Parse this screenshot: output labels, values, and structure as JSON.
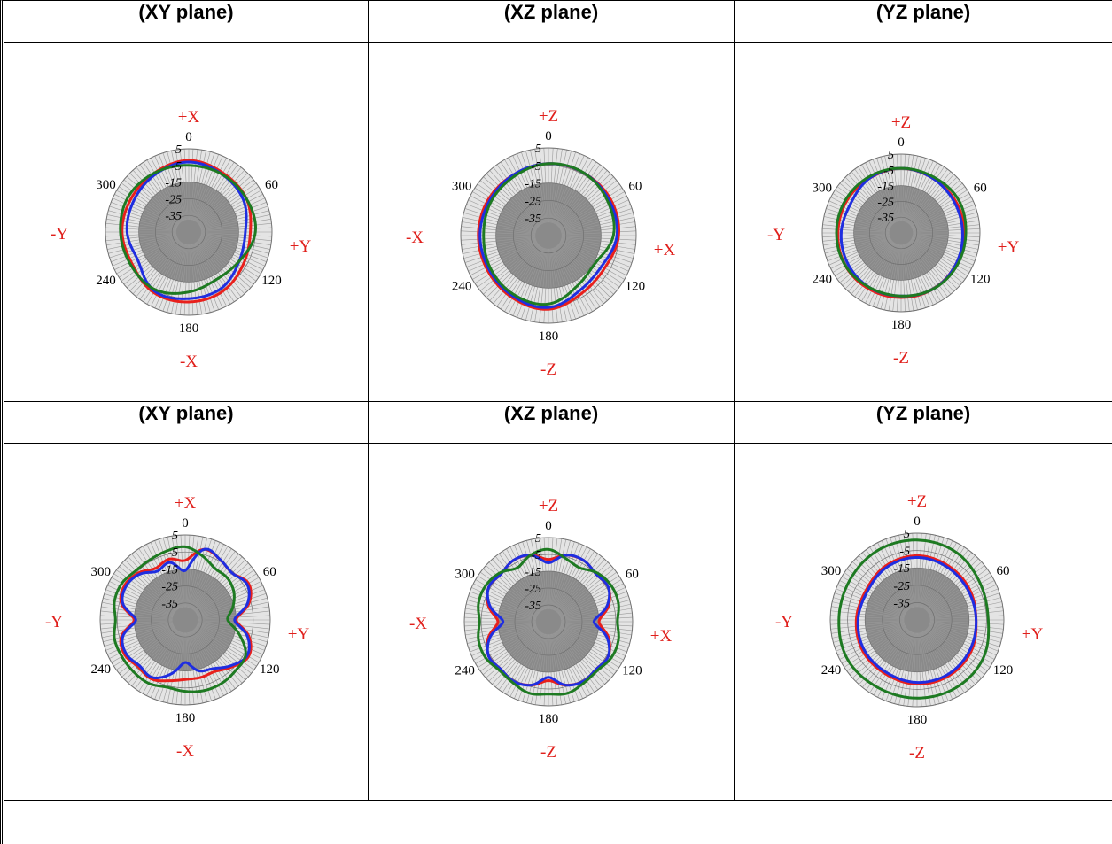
{
  "colors": {
    "red": "#e8201c",
    "blue": "#1f2ee0",
    "green": "#1e7a22",
    "axis_label": "#e0201c",
    "disk_fill": "#8a8a8a"
  },
  "chart_data": [
    {
      "type": "polar",
      "title": "(XY plane)",
      "angle_ticks": [
        "0",
        "60",
        "120",
        "180",
        "240",
        "300"
      ],
      "radial_ticks": [
        "5",
        "-5",
        "-15",
        "-25",
        "-35"
      ],
      "rlim": [
        -45,
        5
      ],
      "axis_labels": {
        "top": "+X",
        "right": "+Y",
        "bottom": "-X",
        "left": "-Y"
      },
      "theta": [
        0,
        30,
        60,
        90,
        120,
        150,
        180,
        210,
        240,
        270,
        300,
        330
      ],
      "series": [
        {
          "color": "red",
          "values": [
            -2,
            -4,
            -5,
            -8,
            -7,
            -4,
            -3,
            -3,
            -6,
            -5,
            -5,
            -4
          ]
        },
        {
          "color": "blue",
          "values": [
            -3,
            -5,
            -7,
            -11,
            -10,
            -6,
            -5,
            -4,
            -10,
            -8,
            -7,
            -5
          ]
        },
        {
          "color": "green",
          "values": [
            -5,
            -5,
            -5,
            -5,
            -10,
            -12,
            -9,
            -5,
            -5,
            -4,
            -3,
            -4
          ]
        }
      ]
    },
    {
      "type": "polar",
      "title": "(XZ plane)",
      "angle_ticks": [
        "0",
        "60",
        "120",
        "180",
        "240",
        "300"
      ],
      "radial_ticks": [
        "5",
        "-5",
        "-15",
        "-25",
        "-35"
      ],
      "rlim": [
        -45,
        5
      ],
      "axis_labels": {
        "top": "+Z",
        "right": "+X",
        "bottom": "-Z",
        "left": "-X"
      },
      "theta": [
        0,
        30,
        60,
        90,
        120,
        150,
        180,
        210,
        240,
        270,
        300,
        330
      ],
      "series": [
        {
          "color": "red",
          "values": [
            -4,
            -4,
            -4,
            -5,
            -8,
            -7,
            -3,
            -4,
            -5,
            -5,
            -5,
            -5
          ]
        },
        {
          "color": "blue",
          "values": [
            -4,
            -4,
            -5,
            -6,
            -10,
            -9,
            -4,
            -5,
            -6,
            -6,
            -6,
            -5
          ]
        },
        {
          "color": "green",
          "values": [
            -4,
            -4,
            -6,
            -8,
            -14,
            -12,
            -6,
            -6,
            -7,
            -8,
            -7,
            -6
          ]
        }
      ]
    },
    {
      "type": "polar",
      "title": "(YZ plane)",
      "angle_ticks": [
        "0",
        "60",
        "120",
        "180",
        "240",
        "300"
      ],
      "radial_ticks": [
        "5",
        "-5",
        "-15",
        "-25",
        "-35"
      ],
      "rlim": [
        -45,
        5
      ],
      "axis_labels": {
        "top": "+Z",
        "right": "+Y",
        "bottom": "-Z",
        "left": "-Y"
      },
      "theta": [
        0,
        30,
        60,
        90,
        120,
        150,
        180,
        210,
        240,
        270,
        300,
        330
      ],
      "series": [
        {
          "color": "red",
          "values": [
            -4,
            -5,
            -5,
            -5,
            -5,
            -4,
            -4,
            -4,
            -4,
            -5,
            -5,
            -5
          ]
        },
        {
          "color": "blue",
          "values": [
            -4,
            -5,
            -6,
            -6,
            -5,
            -4,
            -5,
            -5,
            -6,
            -7,
            -8,
            -5
          ]
        },
        {
          "color": "green",
          "values": [
            -4,
            -4,
            -3,
            -4,
            -4,
            -4,
            -5,
            -5,
            -4,
            -4,
            -4,
            -4
          ]
        }
      ]
    },
    {
      "type": "polar",
      "title": "(XY plane)",
      "angle_ticks": [
        "0",
        "60",
        "120",
        "180",
        "240",
        "300"
      ],
      "radial_ticks": [
        "5",
        "-5",
        "-15",
        "-25",
        "-35"
      ],
      "rlim": [
        -45,
        5
      ],
      "axis_labels": {
        "top": "+X",
        "right": "+Y",
        "bottom": "-X",
        "left": "-Y"
      },
      "theta": [
        0,
        15,
        30,
        45,
        60,
        75,
        90,
        105,
        120,
        135,
        150,
        165,
        180,
        195,
        210,
        225,
        240,
        255,
        270,
        285,
        300,
        315,
        330,
        345
      ],
      "series": [
        {
          "color": "red",
          "values": [
            -10,
            -2,
            -4,
            -6,
            -2,
            -6,
            -15,
            -6,
            -2,
            -6,
            -10,
            -10,
            -10,
            -8,
            -5,
            -6,
            -4,
            -6,
            -15,
            -6,
            -4,
            -6,
            -10,
            -8
          ]
        },
        {
          "color": "blue",
          "values": [
            -16,
            -2,
            -4,
            -6,
            -3,
            -7,
            -16,
            -7,
            -3,
            -7,
            -12,
            -14,
            -20,
            -12,
            -6,
            -7,
            -5,
            -7,
            -16,
            -7,
            -5,
            -7,
            -12,
            -10
          ]
        },
        {
          "color": "green",
          "values": [
            -2,
            -6,
            -10,
            -10,
            -12,
            -16,
            -20,
            -12,
            -4,
            -3,
            -2,
            -2,
            -3,
            -4,
            -2,
            -2,
            -2,
            -2,
            -4,
            -2,
            -2,
            -4,
            -4,
            -3
          ]
        }
      ]
    },
    {
      "type": "polar",
      "title": "(XZ plane)",
      "angle_ticks": [
        "0",
        "60",
        "120",
        "180",
        "240",
        "300"
      ],
      "radial_ticks": [
        "5",
        "-5",
        "-15",
        "-25",
        "-35"
      ],
      "rlim": [
        -45,
        5
      ],
      "axis_labels": {
        "top": "+Z",
        "right": "+X",
        "bottom": "-Z",
        "left": "-X"
      },
      "theta": [
        0,
        15,
        30,
        45,
        60,
        75,
        90,
        105,
        120,
        135,
        150,
        165,
        180,
        195,
        210,
        225,
        240,
        255,
        270,
        285,
        300,
        315,
        330,
        345
      ],
      "series": [
        {
          "color": "red",
          "values": [
            -8,
            -4,
            -3,
            -5,
            -4,
            -8,
            -15,
            -8,
            -4,
            -5,
            -4,
            -6,
            -10,
            -6,
            -4,
            -5,
            -4,
            -8,
            -15,
            -8,
            -4,
            -5,
            -3,
            -4
          ]
        },
        {
          "color": "blue",
          "values": [
            -10,
            -4,
            -3,
            -5,
            -4,
            -9,
            -18,
            -9,
            -4,
            -5,
            -4,
            -6,
            -12,
            -6,
            -4,
            -5,
            -4,
            -9,
            -18,
            -9,
            -4,
            -5,
            -3,
            -4
          ]
        },
        {
          "color": "green",
          "values": [
            -2,
            -6,
            -8,
            -4,
            -2,
            -2,
            -4,
            -2,
            -2,
            -4,
            -3,
            -1,
            -2,
            -1,
            -3,
            -4,
            -2,
            -2,
            -4,
            -2,
            -2,
            -4,
            -8,
            -4
          ]
        }
      ]
    },
    {
      "type": "polar",
      "title": "(YZ plane)",
      "angle_ticks": [
        "0",
        "60",
        "120",
        "180",
        "240",
        "300"
      ],
      "radial_ticks": [
        "5",
        "-5",
        "-15",
        "-25",
        "-35"
      ],
      "rlim": [
        -45,
        5
      ],
      "axis_labels": {
        "top": "+Z",
        "right": "+Y",
        "bottom": "-Z",
        "left": "-Y"
      },
      "theta": [
        0,
        30,
        60,
        90,
        120,
        150,
        180,
        210,
        240,
        270,
        300,
        330
      ],
      "series": [
        {
          "color": "red",
          "values": [
            -8,
            -9,
            -10,
            -11,
            -9,
            -8,
            -8,
            -9,
            -9,
            -10,
            -11,
            -9
          ]
        },
        {
          "color": "blue",
          "values": [
            -9,
            -10,
            -11,
            -11,
            -10,
            -9,
            -9,
            -10,
            -10,
            -11,
            -12,
            -10
          ]
        },
        {
          "color": "green",
          "values": [
            1,
            0,
            -3,
            -4,
            -1,
            0,
            0,
            0,
            1,
            0,
            0,
            1
          ]
        }
      ]
    }
  ]
}
